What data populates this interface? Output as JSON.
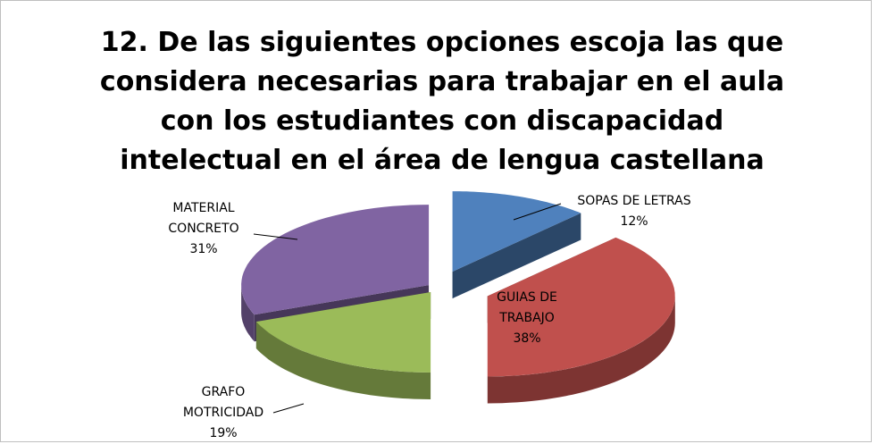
{
  "chart_data": {
    "type": "pie3d",
    "title": "12. De las siguientes opciones escoja las que considera necesarias para trabajar en el aula con los estudiantes con discapacidad intelectual en el área de lengua castellana",
    "categories": [
      "SOPAS DE LETRAS",
      "GUIAS DE TRABAJO",
      "GRAFO MOTRICIDAD",
      "MATERIAL CONCRETO"
    ],
    "values": [
      12,
      38,
      19,
      31
    ],
    "value_labels": [
      "12%",
      "38%",
      "19%",
      "31%"
    ],
    "colors": [
      "#4f81bd",
      "#c0504d",
      "#9bbb59",
      "#8064a2"
    ]
  }
}
